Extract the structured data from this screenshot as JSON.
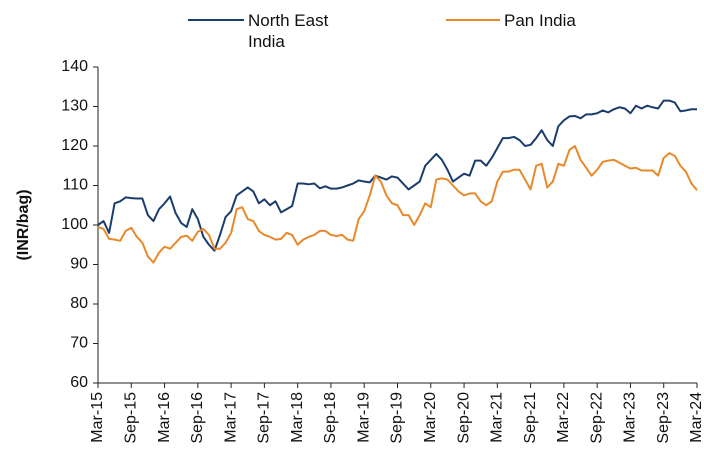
{
  "chart_data": {
    "type": "line",
    "ylabel": "(INR/bag)",
    "categories": [
      "Mar-15",
      null,
      null,
      null,
      null,
      null,
      "Sep-15",
      null,
      null,
      null,
      null,
      null,
      "Mar-16",
      null,
      null,
      null,
      null,
      null,
      "Sep-16",
      null,
      null,
      null,
      null,
      null,
      "Mar-17",
      null,
      null,
      null,
      null,
      null,
      "Sep-17",
      null,
      null,
      null,
      null,
      null,
      "Mar-18",
      null,
      null,
      null,
      null,
      null,
      "Sep-18",
      null,
      null,
      null,
      null,
      null,
      "Mar-19",
      null,
      null,
      null,
      null,
      null,
      "Sep-19",
      null,
      null,
      null,
      null,
      null,
      "Mar-20",
      null,
      null,
      null,
      null,
      null,
      "Sep-20",
      null,
      null,
      null,
      null,
      null,
      "Mar-21",
      null,
      null,
      null,
      null,
      null,
      "Sep-21",
      null,
      null,
      null,
      null,
      null,
      "Mar-22",
      null,
      null,
      null,
      null,
      null,
      "Sep-22",
      null,
      null,
      null,
      null,
      null,
      "Mar-23",
      null,
      null,
      null,
      null,
      null,
      "Sep-23",
      null,
      null,
      null,
      null,
      null,
      "Mar-24"
    ],
    "series": [
      {
        "name": "North East India",
        "color": "#1b3d6d",
        "values": [
          100,
          101,
          98,
          105.5,
          106,
          107,
          106.8,
          106.7,
          106.7,
          102.5,
          101,
          104,
          105.5,
          107.2,
          103,
          100.5,
          99.5,
          104,
          101.5,
          97,
          95,
          93.5,
          97.5,
          102,
          103.5,
          107.5,
          108.5,
          109.5,
          108.5,
          105.5,
          106.5,
          105,
          106,
          103.2,
          104,
          104.8,
          110.5,
          110.5,
          110.3,
          110.5,
          109.3,
          109.8,
          109.2,
          109.2,
          109.5,
          110,
          110.5,
          111.3,
          111,
          110.8,
          112.5,
          112,
          111.5,
          112.3,
          112,
          110.5,
          109,
          110,
          111,
          115,
          116.5,
          118,
          116.5,
          114,
          111,
          112,
          113,
          112.5,
          116.3,
          116.3,
          115,
          117,
          119.5,
          122,
          122,
          122.3,
          121.5,
          120,
          120.3,
          122,
          124,
          121.5,
          120,
          125,
          126.5,
          127.5,
          127.6,
          127,
          128,
          128,
          128.3,
          129,
          128.5,
          129.3,
          129.8,
          129.5,
          128.3,
          130.2,
          129.5,
          130.2,
          129.8,
          129.5,
          131.5,
          131.5,
          131,
          128.8,
          129,
          129.3,
          129.3
        ]
      },
      {
        "name": "Pan India",
        "color": "#e8892b",
        "values": [
          99.5,
          99,
          96.5,
          96.3,
          96,
          98.5,
          99.3,
          97,
          95.5,
          92,
          90.5,
          93,
          94.5,
          94,
          95.5,
          97,
          97.3,
          96,
          98.3,
          99,
          97.5,
          94,
          94,
          95.5,
          98,
          104,
          104.5,
          101.5,
          101,
          98.5,
          97.5,
          97,
          96.3,
          96.5,
          98,
          97.5,
          95,
          96.3,
          97,
          97.5,
          98.5,
          98.5,
          97.5,
          97.2,
          97.5,
          96.3,
          96,
          101.5,
          103.5,
          107.5,
          112.5,
          111,
          107.5,
          105.5,
          105,
          102.5,
          102.5,
          100,
          102.5,
          105.5,
          104.5,
          111.5,
          111.8,
          111.5,
          110,
          108.5,
          107.5,
          108,
          108,
          106,
          105,
          106,
          111,
          113.5,
          113.5,
          114,
          114,
          111.5,
          109,
          115,
          115.5,
          109.5,
          111,
          115.5,
          115,
          119,
          120,
          116.5,
          114.5,
          112.5,
          114,
          116,
          116.3,
          116.5,
          115.8,
          115,
          114.3,
          114.5,
          113.8,
          113.8,
          113.8,
          112.5,
          117,
          118.2,
          117.5,
          115,
          113.5,
          110.5,
          108.8
        ]
      }
    ],
    "ylim": [
      60,
      140
    ],
    "yticks": [
      60,
      70,
      80,
      90,
      100,
      110,
      120,
      130,
      140
    ],
    "grid": false,
    "legend": "top"
  }
}
